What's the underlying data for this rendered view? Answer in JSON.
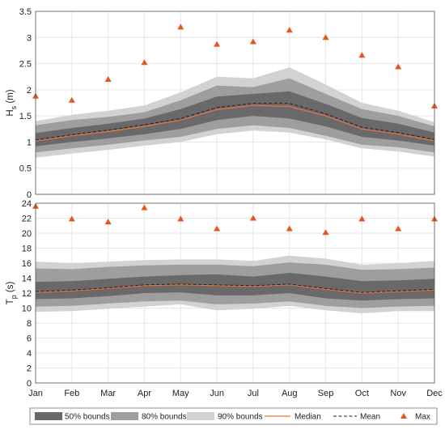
{
  "chart_data": [
    {
      "type": "area",
      "ylabel": "H_s (m)",
      "ylabel_main": "H",
      "ylabel_sub": "s",
      "ylabel_unit": " (m)",
      "ylim": [
        0,
        3.5
      ],
      "yticks": [
        "0",
        "0.5",
        "1",
        "1.5",
        "2",
        "2.5",
        "3",
        "3.5"
      ],
      "x": [
        "Jan",
        "Feb",
        "Mar",
        "Apr",
        "May",
        "Jun",
        "Jul",
        "Aug",
        "Sep",
        "Oct",
        "Nov",
        "Dec"
      ],
      "grid": true,
      "bands": {
        "b90": {
          "lo": [
            0.7,
            0.78,
            0.85,
            0.93,
            1.0,
            1.15,
            1.22,
            1.18,
            1.05,
            0.88,
            0.82,
            0.72
          ],
          "hi": [
            1.4,
            1.52,
            1.6,
            1.7,
            1.95,
            2.25,
            2.22,
            2.43,
            2.1,
            1.75,
            1.6,
            1.38
          ]
        },
        "b80": {
          "lo": [
            0.8,
            0.88,
            0.95,
            1.03,
            1.1,
            1.25,
            1.32,
            1.27,
            1.12,
            0.95,
            0.9,
            0.8
          ],
          "hi": [
            1.32,
            1.42,
            1.48,
            1.57,
            1.8,
            2.08,
            2.05,
            2.22,
            1.92,
            1.63,
            1.5,
            1.3
          ]
        },
        "b50": {
          "lo": [
            0.92,
            1.0,
            1.07,
            1.15,
            1.25,
            1.42,
            1.5,
            1.45,
            1.3,
            1.1,
            1.03,
            0.93
          ],
          "hi": [
            1.17,
            1.27,
            1.35,
            1.45,
            1.63,
            1.87,
            1.92,
            1.97,
            1.73,
            1.46,
            1.35,
            1.18
          ]
        }
      },
      "median": [
        1.02,
        1.12,
        1.2,
        1.3,
        1.42,
        1.62,
        1.7,
        1.68,
        1.5,
        1.25,
        1.15,
        1.02
      ],
      "mean": [
        1.04,
        1.14,
        1.23,
        1.33,
        1.45,
        1.66,
        1.74,
        1.74,
        1.54,
        1.28,
        1.18,
        1.05
      ],
      "max": [
        1.88,
        1.8,
        2.2,
        2.52,
        3.2,
        2.87,
        2.92,
        3.14,
        3.0,
        2.66,
        2.44,
        1.69
      ]
    },
    {
      "type": "area",
      "ylabel": "T_p (s)",
      "ylabel_main": "T",
      "ylabel_sub": "p",
      "ylabel_unit": " (s)",
      "ylim": [
        0,
        24
      ],
      "yticks": [
        "0",
        "2",
        "4",
        "6",
        "8",
        "10",
        "12",
        "14",
        "16",
        "18",
        "20",
        "22",
        "24"
      ],
      "x": [
        "Jan",
        "Feb",
        "Mar",
        "Apr",
        "May",
        "Jun",
        "Jul",
        "Aug",
        "Sep",
        "Oct",
        "Nov",
        "Dec"
      ],
      "xticklabels": [
        "Jan",
        "Feb",
        "Mar",
        "Apr",
        "May",
        "Jun",
        "Jul",
        "Aug",
        "Sep",
        "Oct",
        "Nov",
        "Dec"
      ],
      "grid": true,
      "bands": {
        "b90": {
          "lo": [
            9.5,
            9.6,
            9.9,
            10.2,
            10.5,
            9.7,
            9.9,
            10.3,
            9.7,
            9.3,
            9.6,
            9.6
          ],
          "hi": [
            16.2,
            16.0,
            16.2,
            16.4,
            16.5,
            16.5,
            16.3,
            17.0,
            16.6,
            15.8,
            16.0,
            16.3
          ]
        },
        "b80": {
          "lo": [
            10.2,
            10.3,
            10.6,
            10.9,
            11.0,
            10.5,
            10.6,
            10.9,
            10.3,
            10.0,
            10.2,
            10.3
          ],
          "hi": [
            15.3,
            15.2,
            15.5,
            15.7,
            15.8,
            15.8,
            15.6,
            16.1,
            15.8,
            15.1,
            15.2,
            15.4
          ]
        },
        "b50": {
          "lo": [
            11.2,
            11.3,
            11.6,
            12.0,
            12.1,
            11.7,
            11.7,
            12.0,
            11.3,
            11.0,
            11.2,
            11.3
          ],
          "hi": [
            13.5,
            13.6,
            13.9,
            14.2,
            14.4,
            14.5,
            14.2,
            14.7,
            14.2,
            13.6,
            13.7,
            13.9
          ]
        }
      },
      "median": [
        12.1,
        12.3,
        12.6,
        13.0,
        13.1,
        13.0,
        12.9,
        13.1,
        12.5,
        12.0,
        12.2,
        12.4
      ],
      "mean": [
        12.2,
        12.4,
        12.7,
        13.1,
        13.2,
        13.1,
        13.0,
        13.2,
        12.6,
        12.1,
        12.3,
        12.5
      ],
      "max": [
        23.6,
        21.9,
        21.5,
        23.4,
        21.9,
        20.6,
        22.0,
        20.6,
        20.1,
        21.9,
        20.6,
        21.9
      ]
    }
  ],
  "legend": {
    "placement": "bottom",
    "items": [
      {
        "key": "b50",
        "label": "50% bounds",
        "kind": "patch",
        "color": "#696969"
      },
      {
        "key": "b80",
        "label": "80% bounds",
        "kind": "patch",
        "color": "#9e9e9e"
      },
      {
        "key": "b90",
        "label": "90% bounds",
        "kind": "patch",
        "color": "#d2d2d2"
      },
      {
        "key": "median",
        "label": "Median",
        "kind": "line",
        "color": "#e8743b"
      },
      {
        "key": "mean",
        "label": "Mean",
        "kind": "dash",
        "color": "#222222"
      },
      {
        "key": "max",
        "label": "Max",
        "kind": "marker",
        "color": "#e8541a"
      }
    ]
  },
  "colors": {
    "b90": "#d2d2d2",
    "b80": "#9e9e9e",
    "b50": "#696969",
    "median": "#e8743b",
    "mean": "#222222",
    "max": "#e8541a",
    "grid": "#e6e6e6",
    "axis": "#555555"
  }
}
